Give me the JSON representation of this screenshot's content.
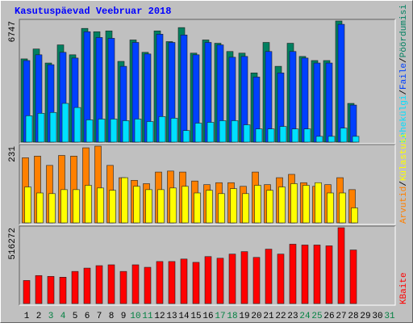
{
  "title": "Kasutuspäevad Veebruar 2018",
  "legend_separator": "/",
  "chart_data": [
    {
      "type": "bar",
      "ylim": [
        0,
        6747
      ],
      "yticks": [
        6747
      ],
      "series": [
        {
          "name": "Pöördumisi",
          "color": "#008060",
          "values": [
            4636,
            5187,
            4406,
            5416,
            4865,
            6334,
            6150,
            6196,
            4498,
            5691,
            5003,
            6196,
            5600,
            6380,
            4957,
            5691,
            5508,
            5049,
            4957,
            3855,
            5554,
            4223,
            5508,
            4773,
            4544,
            4544,
            6747,
            2157,
            null,
            null,
            null
          ]
        },
        {
          "name": "Faile",
          "color": "#0040ff",
          "values": [
            4544,
            4865,
            4314,
            5003,
            4682,
            6150,
            5829,
            5783,
            4223,
            5554,
            4911,
            6013,
            5554,
            5967,
            4865,
            5554,
            5416,
            4728,
            4773,
            3626,
            5049,
            3855,
            5049,
            4682,
            4406,
            4406,
            6563,
            2065,
            null,
            null,
            null
          ]
        },
        {
          "name": "Lehekülgi",
          "color": "#00e0ff",
          "values": [
            1469,
            1606,
            1652,
            2157,
            1928,
            1239,
            1285,
            1285,
            1193,
            1285,
            1147,
            1423,
            1331,
            643,
            1056,
            1102,
            1193,
            1193,
            964,
            734,
            734,
            872,
            734,
            734,
            321,
            321,
            780,
            321,
            null,
            null,
            null
          ]
        }
      ]
    },
    {
      "type": "bar",
      "ylim": [
        0,
        231
      ],
      "yticks": [
        231
      ],
      "series": [
        {
          "name": "Külastusi",
          "color": "#ffff00",
          "values": [
            108,
            90,
            88,
            100,
            100,
            113,
            105,
            98,
            136,
            110,
            100,
            100,
            105,
            110,
            90,
            98,
            88,
            103,
            88,
            113,
            98,
            108,
            118,
            113,
            121,
            90,
            90,
            45,
            null,
            null,
            null
          ]
        },
        {
          "name": "Arvutid",
          "color": "#ff8000",
          "values": [
            196,
            201,
            173,
            203,
            201,
            226,
            231,
            173,
            136,
            128,
            118,
            153,
            156,
            153,
            126,
            115,
            121,
            121,
            110,
            153,
            115,
            136,
            146,
            121,
            110,
            115,
            136,
            100,
            null,
            null,
            null
          ]
        }
      ]
    },
    {
      "type": "bar",
      "ylim": [
        0,
        516272
      ],
      "yticks": [
        516272
      ],
      "categories": [
        "1",
        "2",
        "3",
        "4",
        "5",
        "6",
        "7",
        "8",
        "9",
        "10",
        "11",
        "12",
        "13",
        "14",
        "15",
        "16",
        "17",
        "18",
        "19",
        "20",
        "21",
        "22",
        "23",
        "24",
        "25",
        "26",
        "27",
        "28",
        "29",
        "30",
        "31"
      ],
      "category_colors": [
        "#000000",
        "#000000",
        "#008040",
        "#008040",
        "#000000",
        "#000000",
        "#000000",
        "#000000",
        "#000000",
        "#008040",
        "#008040",
        "#000000",
        "#000000",
        "#000000",
        "#000000",
        "#000000",
        "#008040",
        "#008040",
        "#000000",
        "#000000",
        "#000000",
        "#000000",
        "#000000",
        "#008040",
        "#008040",
        "#000000",
        "#000000",
        "#000000",
        "#000000",
        "#000000",
        "#008040"
      ],
      "series": [
        {
          "name": "KBaite",
          "color": "#ff0000",
          "values": [
            157126,
            190796,
            185185,
            179573,
            218855,
            241302,
            258136,
            263748,
            218855,
            263748,
            246913,
            286194,
            286194,
            303030,
            280583,
            319864,
            308640,
            336699,
            353534,
            314252,
            370369,
            336699,
            404039,
            398428,
            398428,
            392816,
            516272,
            364756,
            null,
            null,
            null
          ]
        }
      ]
    }
  ]
}
